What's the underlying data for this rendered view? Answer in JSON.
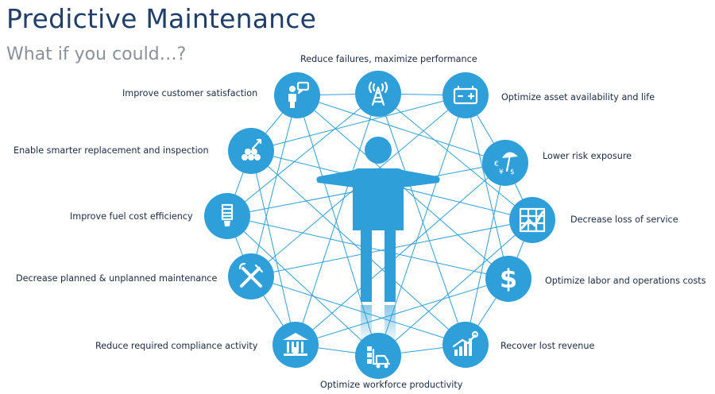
{
  "header": {
    "title": "Predictive Maintenance",
    "subtitle": "What if you could…?"
  },
  "benefits": [
    "Reduce failures, maximize performance",
    "Optimize asset availability and life",
    "Lower risk exposure",
    "Decrease loss of service",
    "Optimize labor and operations costs",
    "Recover lost revenue",
    "Optimize workforce productivity",
    "Reduce required compliance activity",
    "Decrease planned & unplanned maintenance",
    "Improve fuel cost efficiency",
    "Enable smarter replacement and inspection",
    "Improve customer satisfaction"
  ],
  "icons": [
    "tower-icon",
    "battery-icon",
    "umbrella-currency-icon",
    "chart-decline-icon",
    "dollar-icon",
    "growth-chart-icon",
    "forklift-icon",
    "bank-icon",
    "tools-icon",
    "lightbulb-icon",
    "molecule-icon",
    "person-speech-icon"
  ],
  "colors": {
    "accent": "#2e9fd8",
    "line": "#2e9fd8",
    "title": "#1f3f6a",
    "subtitle": "#8a9097",
    "label": "#1a2a44"
  }
}
